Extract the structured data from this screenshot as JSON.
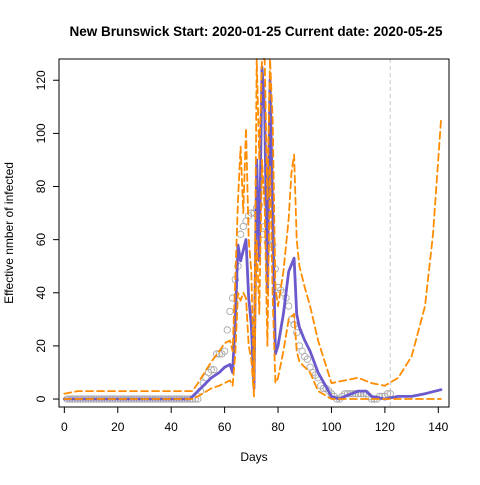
{
  "chart_data": {
    "type": "line",
    "title": "New Brunswick Start:  2020-01-25   Current date:  2020-05-25",
    "xlabel": "Days",
    "ylabel": "Effective nmber of infected",
    "xlim": [
      -2,
      144
    ],
    "ylim": [
      -3,
      128
    ],
    "x_ticks": [
      0,
      20,
      40,
      60,
      80,
      100,
      120,
      140
    ],
    "y_ticks": [
      0,
      20,
      40,
      60,
      80,
      100,
      120
    ],
    "grid": false,
    "legend": "none",
    "current_day": 122,
    "colors": {
      "estimate": "#6a5acd",
      "bounds": "#ff8c00",
      "observed": "#a9a9a9",
      "current_day_line": "#c8c8c8"
    },
    "series": [
      {
        "style": "points",
        "x": [
          1,
          2,
          3,
          4,
          5,
          6,
          7,
          8,
          9,
          10,
          11,
          12,
          13,
          14,
          15,
          16,
          17,
          18,
          19,
          20,
          21,
          22,
          23,
          24,
          25,
          26,
          27,
          28,
          29,
          30,
          31,
          32,
          33,
          34,
          35,
          36,
          37,
          38,
          39,
          40,
          41,
          42,
          43,
          44,
          45,
          46,
          47,
          48,
          49,
          50,
          51,
          52,
          53,
          54,
          55,
          56,
          57,
          58,
          59,
          60,
          61,
          62,
          63,
          64,
          65,
          66,
          67,
          68,
          69,
          70,
          71,
          72,
          73,
          74,
          75,
          76,
          77,
          78,
          79,
          80,
          81,
          82,
          83,
          84,
          85,
          86,
          87,
          88,
          89,
          90,
          91,
          92,
          93,
          94,
          95,
          96,
          97,
          98,
          99,
          100,
          101,
          102,
          103,
          104,
          105,
          106,
          107,
          108,
          109,
          110,
          111,
          112,
          113,
          114,
          115,
          116,
          117,
          118,
          119,
          120,
          121,
          122
        ],
        "y": [
          0,
          0,
          0,
          0,
          0,
          0,
          0,
          0,
          0,
          0,
          0,
          0,
          0,
          0,
          0,
          0,
          0,
          0,
          0,
          0,
          0,
          0,
          0,
          0,
          0,
          0,
          0,
          0,
          0,
          0,
          0,
          0,
          0,
          0,
          0,
          0,
          0,
          0,
          0,
          0,
          0,
          0,
          0,
          0,
          0,
          0,
          0,
          0,
          0,
          0,
          3,
          6,
          8,
          10,
          11,
          11,
          17,
          17,
          17,
          18,
          26,
          33,
          38,
          45,
          50,
          62,
          65,
          67,
          69,
          70,
          70,
          72,
          73,
          62,
          65,
          59,
          55,
          58,
          49,
          42,
          41,
          40,
          38,
          35,
          30,
          28,
          25,
          20,
          18,
          16,
          15,
          12,
          10,
          9,
          8,
          5,
          4,
          4,
          3,
          2,
          1,
          0,
          0,
          1,
          2,
          2,
          2,
          2,
          2,
          2,
          2,
          2,
          2,
          1,
          0,
          0,
          0,
          1,
          1,
          1,
          2,
          2
        ]
      },
      {
        "style": "solid",
        "x": [
          0,
          10,
          20,
          30,
          40,
          47,
          50,
          55,
          58,
          60,
          62,
          63,
          64,
          65,
          66,
          67,
          68,
          69,
          70,
          71,
          72,
          73,
          74,
          75,
          76,
          77,
          78,
          79,
          80,
          82,
          84,
          86,
          87,
          88,
          90,
          92,
          95,
          100,
          103,
          105,
          110,
          113,
          115,
          120,
          125,
          130,
          135,
          141
        ],
        "y": [
          0,
          0,
          0,
          0,
          0,
          0,
          3,
          8,
          10,
          12,
          13,
          10,
          30,
          58,
          52,
          56,
          60,
          38,
          28,
          4,
          90,
          52,
          125,
          108,
          40,
          120,
          70,
          17,
          20,
          32,
          48,
          53,
          32,
          27,
          22,
          18,
          10,
          1,
          0,
          1,
          3,
          3,
          1,
          0,
          1,
          1,
          2,
          3.5
        ]
      },
      {
        "style": "dashed",
        "x": [
          0,
          5,
          20,
          40,
          45,
          48,
          50,
          55,
          58,
          60,
          62,
          63,
          64,
          65,
          66,
          67,
          68,
          69,
          70,
          71,
          72,
          73,
          74,
          75,
          76,
          77,
          78,
          79,
          80,
          82,
          84,
          85,
          86,
          87,
          88,
          90,
          92,
          95,
          100,
          105,
          110,
          115,
          120,
          125,
          130,
          135,
          138,
          141
        ],
        "y": [
          2,
          3,
          3,
          3,
          3,
          3,
          6,
          14,
          18,
          21,
          22,
          18,
          45,
          75,
          95,
          70,
          102,
          60,
          48,
          8,
          128,
          90,
          128,
          128,
          75,
          128,
          105,
          42,
          35,
          48,
          68,
          85,
          92,
          60,
          50,
          42,
          35,
          22,
          6,
          7,
          8,
          6,
          5,
          8,
          16,
          35,
          62,
          105
        ]
      },
      {
        "style": "dashed",
        "x": [
          0,
          10,
          20,
          30,
          40,
          48,
          50,
          55,
          58,
          60,
          62,
          63,
          64,
          65,
          66,
          67,
          68,
          69,
          70,
          71,
          72,
          73,
          74,
          75,
          76,
          77,
          78,
          79,
          80,
          82,
          84,
          86,
          87,
          88,
          90,
          92,
          95,
          100,
          105,
          110,
          115,
          120,
          130,
          141
        ],
        "y": [
          0,
          0,
          0,
          0,
          0,
          0,
          1,
          4,
          5,
          6,
          7,
          5,
          17,
          40,
          37,
          40,
          38,
          20,
          15,
          1,
          60,
          32,
          90,
          72,
          20,
          88,
          38,
          6,
          8,
          18,
          30,
          32,
          18,
          14,
          12,
          10,
          3,
          0,
          0,
          0,
          0,
          0,
          0,
          0
        ]
      }
    ]
  }
}
